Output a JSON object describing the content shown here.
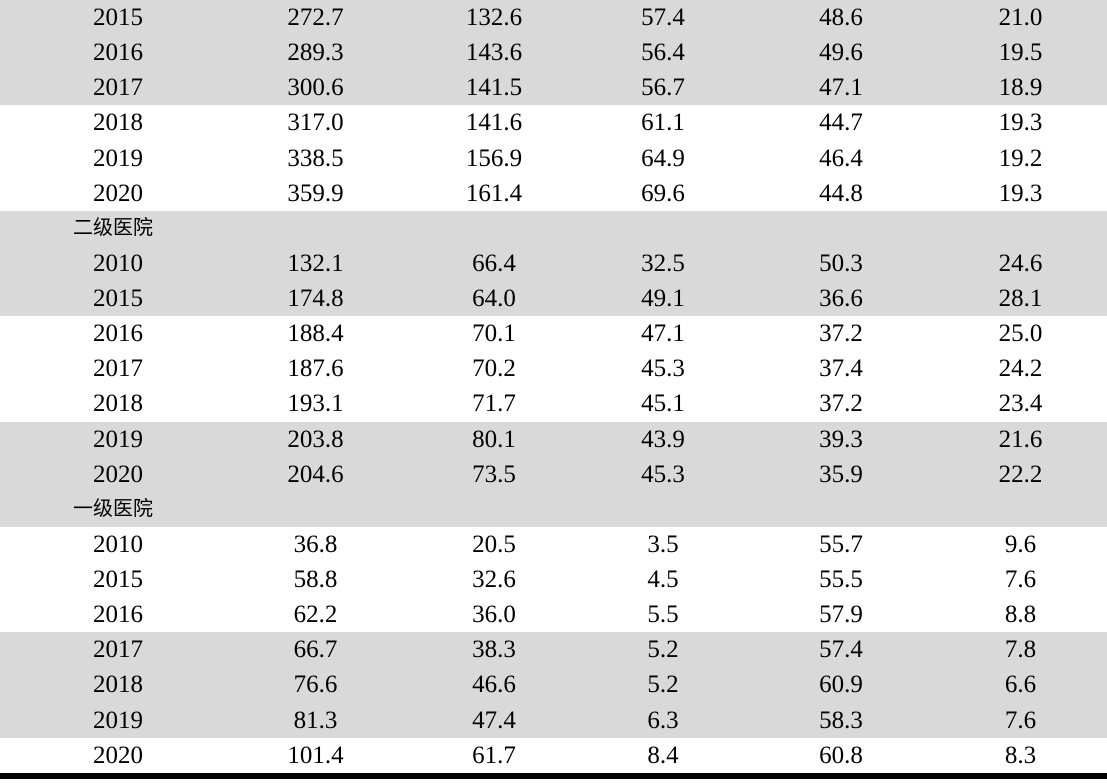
{
  "table": {
    "description_note": "cropped statistical table, no column headers visible in screenshot",
    "band_color": "#d9d9d9",
    "text_color": "#000000",
    "bottom_rule_color": "#000000",
    "sections_visible": [
      "二级医院",
      "一级医院"
    ],
    "rows": [
      {
        "type": "year",
        "label": "2015",
        "values": [
          "272.7",
          "132.6",
          "57.4",
          "48.6",
          "21.0"
        ],
        "shaded": true
      },
      {
        "type": "year",
        "label": "2016",
        "values": [
          "289.3",
          "143.6",
          "56.4",
          "49.6",
          "19.5"
        ],
        "shaded": true
      },
      {
        "type": "year",
        "label": "2017",
        "values": [
          "300.6",
          "141.5",
          "56.7",
          "47.1",
          "18.9"
        ],
        "shaded": true
      },
      {
        "type": "year",
        "label": "2018",
        "values": [
          "317.0",
          "141.6",
          "61.1",
          "44.7",
          "19.3"
        ],
        "shaded": false
      },
      {
        "type": "year",
        "label": "2019",
        "values": [
          "338.5",
          "156.9",
          "64.9",
          "46.4",
          "19.2"
        ],
        "shaded": false
      },
      {
        "type": "year",
        "label": "2020",
        "values": [
          "359.9",
          "161.4",
          "69.6",
          "44.8",
          "19.3"
        ],
        "shaded": false
      },
      {
        "type": "section",
        "label": "二级医院",
        "values": [
          "",
          "",
          "",
          "",
          ""
        ],
        "shaded": true
      },
      {
        "type": "year",
        "label": "2010",
        "values": [
          "132.1",
          "66.4",
          "32.5",
          "50.3",
          "24.6"
        ],
        "shaded": true
      },
      {
        "type": "year",
        "label": "2015",
        "values": [
          "174.8",
          "64.0",
          "49.1",
          "36.6",
          "28.1"
        ],
        "shaded": true
      },
      {
        "type": "year",
        "label": "2016",
        "values": [
          "188.4",
          "70.1",
          "47.1",
          "37.2",
          "25.0"
        ],
        "shaded": false
      },
      {
        "type": "year",
        "label": "2017",
        "values": [
          "187.6",
          "70.2",
          "45.3",
          "37.4",
          "24.2"
        ],
        "shaded": false
      },
      {
        "type": "year",
        "label": "2018",
        "values": [
          "193.1",
          "71.7",
          "45.1",
          "37.2",
          "23.4"
        ],
        "shaded": false
      },
      {
        "type": "year",
        "label": "2019",
        "values": [
          "203.8",
          "80.1",
          "43.9",
          "39.3",
          "21.6"
        ],
        "shaded": true
      },
      {
        "type": "year",
        "label": "2020",
        "values": [
          "204.6",
          "73.5",
          "45.3",
          "35.9",
          "22.2"
        ],
        "shaded": true
      },
      {
        "type": "section",
        "label": "一级医院",
        "values": [
          "",
          "",
          "",
          "",
          ""
        ],
        "shaded": true
      },
      {
        "type": "year",
        "label": "2010",
        "values": [
          "36.8",
          "20.5",
          "3.5",
          "55.7",
          "9.6"
        ],
        "shaded": false
      },
      {
        "type": "year",
        "label": "2015",
        "values": [
          "58.8",
          "32.6",
          "4.5",
          "55.5",
          "7.6"
        ],
        "shaded": false
      },
      {
        "type": "year",
        "label": "2016",
        "values": [
          "62.2",
          "36.0",
          "5.5",
          "57.9",
          "8.8"
        ],
        "shaded": false
      },
      {
        "type": "year",
        "label": "2017",
        "values": [
          "66.7",
          "38.3",
          "5.2",
          "57.4",
          "7.8"
        ],
        "shaded": true
      },
      {
        "type": "year",
        "label": "2018",
        "values": [
          "76.6",
          "46.6",
          "5.2",
          "60.9",
          "6.6"
        ],
        "shaded": true
      },
      {
        "type": "year",
        "label": "2019",
        "values": [
          "81.3",
          "47.4",
          "6.3",
          "58.3",
          "7.6"
        ],
        "shaded": true
      },
      {
        "type": "year",
        "label": "2020",
        "values": [
          "101.4",
          "61.7",
          "8.4",
          "60.8",
          "8.3"
        ],
        "shaded": false
      }
    ]
  }
}
